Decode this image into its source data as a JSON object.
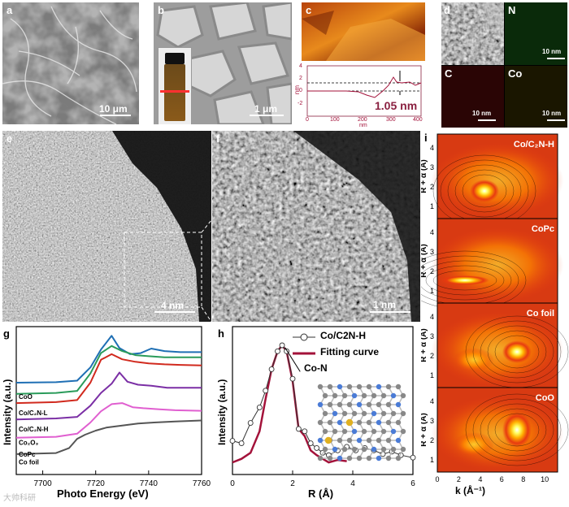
{
  "panels": {
    "a": {
      "label": "a",
      "scale": "10 μm"
    },
    "b": {
      "label": "b",
      "scale": "1 μm"
    },
    "c": {
      "label": "c",
      "height_label": "1.05 nm",
      "y_unit": "nm",
      "x_unit": "nm",
      "yticks": [
        "4",
        "2",
        "0",
        "-2"
      ],
      "xticks": [
        "0",
        "100",
        "200",
        "300",
        "400"
      ]
    },
    "d": {
      "label": "d",
      "maps": [
        "N",
        "C",
        "Co"
      ],
      "scales": [
        "10 nm",
        "10 nm",
        "10 nm"
      ]
    },
    "e": {
      "label": "e",
      "scale": "4 nm"
    },
    "f": {
      "label": "f",
      "scale": "1 nm"
    },
    "g": {
      "label": "g",
      "xlabel": "Photo Energy (eV)",
      "ylabel": "Intensity (a.u.)",
      "xticks": [
        "7700",
        "7720",
        "7740",
        "7760"
      ],
      "legend": [
        "CoO",
        "Co/C2N-L",
        "Co/C2N-H",
        "Co2O3",
        "CoPc",
        "Co foil"
      ]
    },
    "h": {
      "label": "h",
      "xlabel": "R (Å)",
      "ylabel": "Intensity (a.u.)",
      "xticks": [
        "0",
        "2",
        "4",
        "6"
      ],
      "legend": [
        "Co/C2N-H",
        "Fitting curve"
      ],
      "annotation": "Co-N"
    },
    "i": {
      "label": "i",
      "xlabel": "k (Å⁻¹)",
      "ylabel": "R + α (Å)",
      "subplots": [
        "Co/C2N-H",
        "CoPc",
        "Co foil",
        "CoO"
      ],
      "yticks": [
        "1",
        "2",
        "3",
        "4"
      ],
      "xticks": [
        "0",
        "2",
        "4",
        "6",
        "8",
        "10"
      ]
    }
  },
  "watermark": "大帅科研",
  "chart_data": [
    {
      "type": "line",
      "title": "",
      "xlabel": "Photo Energy (eV)",
      "ylabel": "Intensity (a.u.)",
      "xlim": [
        7690,
        7760
      ],
      "series": [
        {
          "name": "CoO",
          "color": "#1f6fb4",
          "x": [
            7690,
            7705,
            7713,
            7718,
            7722,
            7726,
            7729,
            7733,
            7737,
            7741,
            7746,
            7752,
            7760
          ],
          "y": [
            1.8,
            1.81,
            1.84,
            2.1,
            2.45,
            2.72,
            2.48,
            2.36,
            2.38,
            2.47,
            2.42,
            2.4,
            2.4
          ]
        },
        {
          "name": "Co/C2N-L",
          "color": "#2a9b5a",
          "x": [
            7690,
            7705,
            7713,
            7718,
            7722,
            7726,
            7730,
            7735,
            7740,
            7746,
            7752,
            7760
          ],
          "y": [
            1.58,
            1.6,
            1.64,
            1.98,
            2.38,
            2.52,
            2.42,
            2.34,
            2.32,
            2.3,
            2.3,
            2.3
          ]
        },
        {
          "name": "Co/C2N-H",
          "color": "#d12a1e",
          "x": [
            7690,
            7705,
            7713,
            7718,
            7722,
            7726,
            7730,
            7735,
            7740,
            7746,
            7752,
            7760
          ],
          "y": [
            1.4,
            1.42,
            1.46,
            1.8,
            2.25,
            2.36,
            2.26,
            2.21,
            2.18,
            2.16,
            2.15,
            2.14
          ]
        },
        {
          "name": "Co2O3",
          "color": "#7b2fa5",
          "x": [
            7690,
            7705,
            7713,
            7718,
            7722,
            7726,
            7729,
            7732,
            7736,
            7741,
            7747,
            7752,
            7760
          ],
          "y": [
            1.08,
            1.1,
            1.13,
            1.35,
            1.6,
            1.78,
            2.0,
            1.82,
            1.76,
            1.74,
            1.7,
            1.7,
            1.7
          ]
        },
        {
          "name": "CoPc",
          "color": "#e05fd0",
          "x": [
            7690,
            7705,
            7713,
            7718,
            7722,
            7726,
            7730,
            7734,
            7738,
            7744,
            7750,
            7760
          ],
          "y": [
            0.72,
            0.74,
            0.8,
            1.02,
            1.24,
            1.38,
            1.4,
            1.32,
            1.3,
            1.28,
            1.26,
            1.25
          ]
        },
        {
          "name": "Co foil",
          "color": "#555555",
          "x": [
            7690,
            7705,
            7710,
            7713,
            7716,
            7720,
            7724,
            7730,
            7736,
            7742,
            7750,
            7760
          ],
          "y": [
            0.4,
            0.42,
            0.52,
            0.7,
            0.78,
            0.86,
            0.92,
            0.96,
            1.0,
            1.02,
            1.04,
            1.06
          ]
        }
      ]
    },
    {
      "type": "line",
      "title": "",
      "xlabel": "R (Å)",
      "ylabel": "Intensity (a.u.)",
      "xlim": [
        0,
        6
      ],
      "series": [
        {
          "name": "Co/C2N-H",
          "color": "#000000",
          "x": [
            0.0,
            0.3,
            0.6,
            0.9,
            1.1,
            1.3,
            1.5,
            1.65,
            1.8,
            2.0,
            2.2,
            2.4,
            2.6,
            2.8,
            3.0,
            3.2,
            3.5,
            3.8,
            4.1,
            4.4,
            4.7,
            5.0,
            5.3,
            5.6,
            6.0
          ],
          "y": [
            0.2,
            0.18,
            0.35,
            0.48,
            0.62,
            0.8,
            0.95,
            1.0,
            0.95,
            0.72,
            0.3,
            0.28,
            0.18,
            0.14,
            0.1,
            0.08,
            0.12,
            0.15,
            0.12,
            0.14,
            0.12,
            0.09,
            0.11,
            0.08,
            0.06
          ]
        },
        {
          "name": "Fitting curve",
          "color": "#a3123a",
          "x": [
            0.0,
            0.3,
            0.6,
            0.9,
            1.1,
            1.3,
            1.5,
            1.65,
            1.8,
            2.0,
            2.2,
            2.4,
            2.6,
            2.8,
            3.0,
            3.2,
            3.5,
            3.8
          ],
          "y": [
            0.02,
            0.05,
            0.1,
            0.28,
            0.55,
            0.8,
            0.95,
            1.0,
            0.95,
            0.7,
            0.3,
            0.24,
            0.12,
            0.08,
            0.05,
            0.02,
            0.04,
            0.03
          ]
        }
      ]
    }
  ]
}
